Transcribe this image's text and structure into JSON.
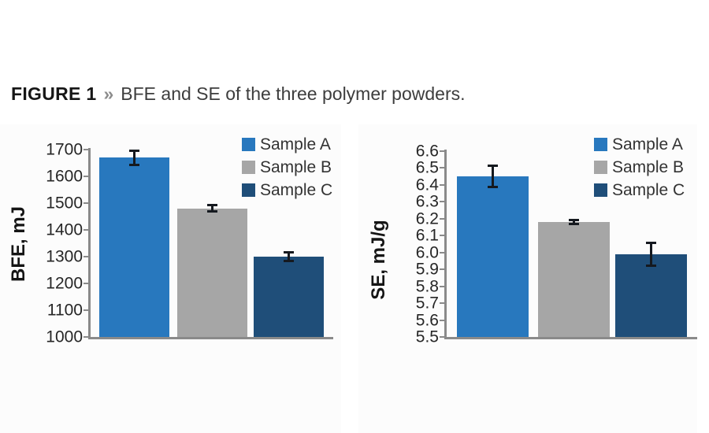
{
  "header": {
    "figure_label": "FIGURE 1",
    "separator": "»",
    "caption": "BFE and SE of the three polymer powders."
  },
  "colors": {
    "bar_blue": "#2878BE",
    "bar_gray": "#A6A6A6",
    "bar_navy": "#1F4E79",
    "axis": "#8A8A8A",
    "error_bar": "#15191F",
    "tick_text": "#262626",
    "legend_text": "#333333",
    "title_text": "#161616",
    "caption_text": "#3D3D3D",
    "separator_text": "#8C8C8C"
  },
  "chart_data": [
    {
      "type": "bar",
      "title": "",
      "xlabel": "",
      "ylabel": "BFE, mJ",
      "categories": [
        "Sample A",
        "Sample B",
        "Sample C"
      ],
      "values": [
        1670,
        1480,
        1300
      ],
      "errors": [
        25,
        10,
        15
      ],
      "colors": [
        "#2878BE",
        "#A6A6A6",
        "#1F4E79"
      ],
      "ylim": [
        1000,
        1700
      ],
      "ytick_step": 100,
      "tick_decimals": 0,
      "grid": false,
      "legend_position": "top-right"
    },
    {
      "type": "bar",
      "title": "",
      "xlabel": "",
      "ylabel": "SE, mJ/g",
      "categories": [
        "Sample A",
        "Sample B",
        "Sample C"
      ],
      "values": [
        6.45,
        6.18,
        5.99
      ],
      "errors": [
        0.06,
        0.01,
        0.065
      ],
      "colors": [
        "#2878BE",
        "#A6A6A6",
        "#1F4E79"
      ],
      "ylim": [
        5.5,
        6.6
      ],
      "ytick_step": 0.1,
      "tick_decimals": 1,
      "grid": false,
      "legend_position": "top-right"
    }
  ]
}
